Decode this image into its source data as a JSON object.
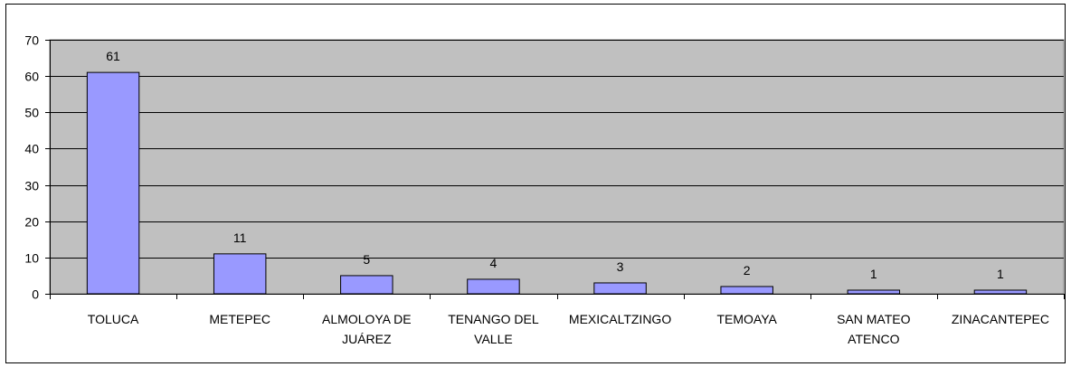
{
  "chart_data": {
    "type": "bar",
    "title": "",
    "xlabel": "",
    "ylabel": "",
    "categories": [
      [
        "TOLUCA"
      ],
      [
        "METEPEC"
      ],
      [
        "ALMOLOYA DE",
        "JUÁREZ"
      ],
      [
        "TENANGO DEL",
        "VALLE"
      ],
      [
        "MEXICALTZINGO"
      ],
      [
        "TEMOAYA"
      ],
      [
        "SAN MATEO",
        "ATENCO"
      ],
      [
        "ZINACANTEPEC"
      ]
    ],
    "values": [
      61,
      11,
      5,
      4,
      3,
      2,
      1,
      1
    ],
    "ylim": [
      0,
      70
    ],
    "yticks": [
      0,
      10,
      20,
      30,
      40,
      50,
      60,
      70
    ],
    "grid": true,
    "legend": "none",
    "colors": {
      "bar_fill": "#9999ff",
      "bar_stroke": "#000000",
      "plot_background": "#c0c0c0",
      "gridline": "#000000"
    }
  }
}
